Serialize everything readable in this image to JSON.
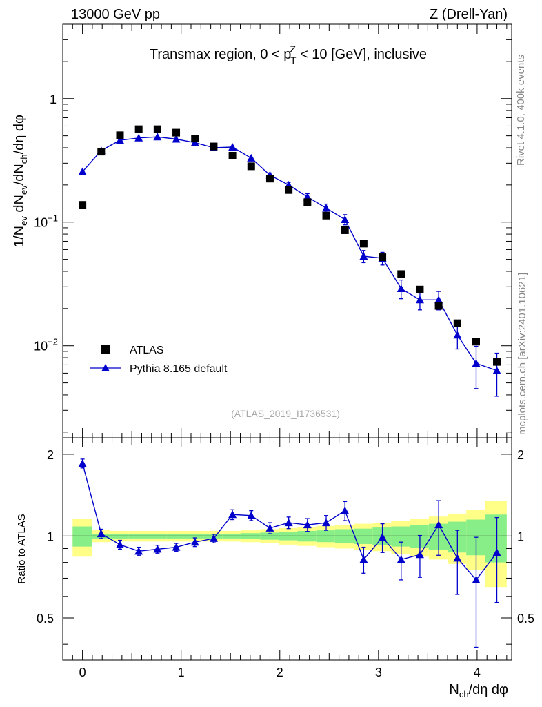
{
  "header": {
    "left": "13000 GeV pp",
    "right": "Z (Drell-Yan)"
  },
  "title": {
    "pre": "Transmax region, 0 < p",
    "sup": "Z",
    "sub": "T",
    "post": " < 10 [GeV], inclusive"
  },
  "side": {
    "rivet": "Rivet 4.1.0,  400k events",
    "mcplots": "mcplots.cern.ch [arXiv:2401.10621]"
  },
  "analysis_id": "(ATLAS_2019_I1736531)",
  "legend": {
    "data": "ATLAS",
    "mc": "Pythia 8.165 default"
  },
  "axes": {
    "ylabel_main": {
      "p1": "1/N",
      "s1": "ev",
      "p2": " dN",
      "s2": "ev",
      "p3": "/dN",
      "s3": "ch",
      "p4": "/dη dφ"
    },
    "ylabel_ratio": "Ratio to ATLAS",
    "xlabel": {
      "p1": "N",
      "s1": "ch",
      "p2": "/dη dφ"
    },
    "main_yticks": [
      {
        "base": "10",
        "exp": "−2",
        "value": 0.01
      },
      {
        "base": "10",
        "exp": "−1",
        "value": 0.1
      },
      {
        "base": "1",
        "exp": "",
        "value": 1
      }
    ],
    "ratio_yticks": [
      "0.5",
      "1",
      "2"
    ],
    "ratio_ytick_values": [
      0.5,
      1,
      2
    ],
    "xticks": [
      "0",
      "1",
      "2",
      "3",
      "4"
    ],
    "xtick_values": [
      0,
      1,
      2,
      3,
      4
    ]
  },
  "colors": {
    "data": "#000000",
    "mc": "#0000cc",
    "band_inner": "#88ee88",
    "band_outer": "#ffff88"
  },
  "chart_data": {
    "type": "scatter",
    "xlim": [
      -0.2,
      4.35
    ],
    "main": {
      "ylim": [
        0.0018,
        4.0
      ],
      "yscale": "log",
      "series": [
        {
          "name": "ATLAS",
          "marker": "square",
          "x": [
            0.0,
            0.19,
            0.38,
            0.57,
            0.76,
            0.95,
            1.14,
            1.33,
            1.52,
            1.71,
            1.9,
            2.09,
            2.28,
            2.47,
            2.66,
            2.85,
            3.04,
            3.23,
            3.42,
            3.61,
            3.8,
            3.99,
            4.2
          ],
          "y": [
            0.138,
            0.372,
            0.505,
            0.565,
            0.565,
            0.53,
            0.475,
            0.41,
            0.345,
            0.283,
            0.225,
            0.182,
            0.145,
            0.113,
            0.086,
            0.067,
            0.052,
            0.038,
            0.0285,
            0.021,
            0.0152,
            0.0108,
            0.0074
          ]
        },
        {
          "name": "Pythia 8.165 default",
          "marker": "triangle",
          "x": [
            0.0,
            0.19,
            0.38,
            0.57,
            0.76,
            0.95,
            1.14,
            1.33,
            1.52,
            1.71,
            1.9,
            2.09,
            2.28,
            2.47,
            2.66,
            2.85,
            3.04,
            3.23,
            3.42,
            3.61,
            3.8,
            3.99,
            4.2
          ],
          "y": [
            0.256,
            0.38,
            0.46,
            0.48,
            0.49,
            0.47,
            0.44,
            0.4,
            0.405,
            0.33,
            0.24,
            0.2,
            0.16,
            0.13,
            0.105,
            0.053,
            0.051,
            0.029,
            0.0235,
            0.0235,
            0.0122,
            0.0072,
            0.0063
          ],
          "yerr": [
            0,
            0,
            0,
            0,
            0,
            0,
            0,
            0,
            0,
            0,
            0.01,
            0.01,
            0.01,
            0.01,
            0.01,
            0.006,
            0.006,
            0.005,
            0.004,
            0.004,
            0.0028,
            0.0027,
            0.0024
          ]
        }
      ]
    },
    "ratio": {
      "ylim": [
        0.35,
        2.3
      ],
      "yscale": "log",
      "reference": 1.0,
      "x": [
        0.0,
        0.19,
        0.38,
        0.57,
        0.76,
        0.95,
        1.14,
        1.33,
        1.52,
        1.71,
        1.9,
        2.09,
        2.28,
        2.47,
        2.66,
        2.85,
        3.04,
        3.23,
        3.42,
        3.61,
        3.8,
        3.99,
        4.2
      ],
      "y": [
        1.85,
        1.02,
        0.93,
        0.88,
        0.895,
        0.91,
        0.95,
        0.98,
        1.2,
        1.19,
        1.07,
        1.12,
        1.1,
        1.12,
        1.24,
        0.82,
        0.99,
        0.82,
        0.855,
        1.1,
        0.83,
        0.69,
        0.87
      ],
      "yerr": [
        0.07,
        0.04,
        0.035,
        0.03,
        0.03,
        0.03,
        0.035,
        0.035,
        0.05,
        0.05,
        0.05,
        0.055,
        0.06,
        0.07,
        0.1,
        0.09,
        0.12,
        0.13,
        0.15,
        0.25,
        0.22,
        0.3,
        0.3
      ],
      "band_edges": [
        -0.1,
        0.1,
        0.28,
        0.47,
        0.66,
        0.85,
        1.04,
        1.23,
        1.42,
        1.61,
        1.8,
        1.99,
        2.18,
        2.37,
        2.56,
        2.75,
        2.94,
        3.13,
        3.32,
        3.51,
        3.7,
        3.89,
        4.08,
        4.3
      ],
      "band_inner": [
        0.085,
        0.02,
        0.02,
        0.02,
        0.02,
        0.02,
        0.02,
        0.02,
        0.02,
        0.025,
        0.03,
        0.035,
        0.045,
        0.05,
        0.06,
        0.065,
        0.075,
        0.085,
        0.095,
        0.11,
        0.13,
        0.15,
        0.2
      ],
      "band_outer": [
        0.16,
        0.05,
        0.045,
        0.045,
        0.045,
        0.045,
        0.045,
        0.045,
        0.045,
        0.05,
        0.06,
        0.07,
        0.08,
        0.09,
        0.1,
        0.11,
        0.12,
        0.14,
        0.16,
        0.18,
        0.21,
        0.25,
        0.35
      ]
    }
  }
}
